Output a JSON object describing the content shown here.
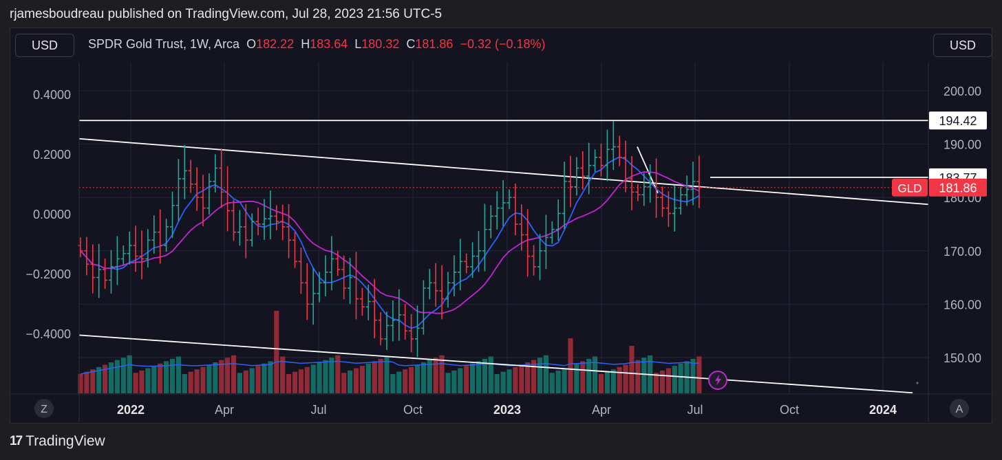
{
  "caption": "rjamesboudreau published on TradingView.com, Jul 28, 2023 21:56 UTC-5",
  "currency_left": "USD",
  "currency_right": "USD",
  "legend": {
    "title": "SPDR Gold Trust, 1W, Arca",
    "o_label": "O",
    "o_value": "182.22",
    "h_label": "H",
    "h_value": "183.64",
    "l_label": "L",
    "l_value": "180.32",
    "c_label": "C",
    "c_value": "181.86",
    "change": "−0.32 (−0.18%)"
  },
  "footer": {
    "brand": "TradingView",
    "logo": "17"
  },
  "corner_left": "Z",
  "corner_right": "A",
  "colors": {
    "up": "#26a69a",
    "down": "#f23645",
    "ma_fast": "#2962ff",
    "ma_slow": "#c026d3",
    "trend": "#ffffff",
    "vol_up": "#136b64",
    "vol_down": "#8f2a36"
  },
  "chart_data": {
    "type": "candlestick",
    "symbol": "GLD",
    "title": "SPDR Gold Trust, 1W, Arca",
    "price_axis": {
      "ticks": [
        150,
        160,
        170,
        180,
        190,
        200
      ],
      "tick_labels": [
        "150.00",
        "160.00",
        "170.00",
        "180.00",
        "190.00",
        "200.00"
      ],
      "range": [
        143.3,
        205.4
      ]
    },
    "osc_axis": {
      "ticks": [
        -0.4,
        -0.2,
        0,
        0.2,
        0.4
      ],
      "tick_labels": [
        "−0.4000",
        "−0.2000",
        "0.0000",
        "0.2000",
        "0.4000"
      ]
    },
    "time_axis": {
      "tick_labels": [
        "2022",
        "Apr",
        "Jul",
        "Oct",
        "2023",
        "Apr",
        "Jul",
        "Oct",
        "2024"
      ],
      "bold": [
        true,
        false,
        false,
        false,
        true,
        false,
        false,
        false,
        true
      ]
    },
    "last_price": {
      "label": "GLD",
      "value": "181.86",
      "price": 181.86
    },
    "horizontal_levels": [
      {
        "price": 194.42,
        "label": "194.42"
      },
      {
        "price": 183.77,
        "label": "183.77"
      }
    ],
    "closes": [
      170,
      167.5,
      165,
      166.5,
      164.5,
      167,
      168.5,
      169.5,
      171,
      169,
      168.5,
      172,
      173.5,
      171,
      174.5,
      178.5,
      183.5,
      185,
      182.5,
      180,
      178,
      183,
      185.5,
      181,
      177.5,
      173.5,
      174.5,
      172,
      175.5,
      175,
      176,
      176.5,
      175.5,
      174.5,
      172,
      168,
      164,
      160,
      162,
      164,
      166,
      168.5,
      166.5,
      163,
      165,
      161,
      159.5,
      160.5,
      157,
      153.5,
      156,
      157,
      158,
      155,
      153.5,
      155.5,
      163,
      164,
      162.5,
      161,
      164,
      166,
      168,
      167,
      169,
      170,
      174,
      176.5,
      178,
      179,
      180,
      175,
      173,
      169,
      167,
      170,
      172.5,
      174,
      177,
      183,
      182,
      185.5,
      184,
      186,
      187.5,
      186,
      189,
      189.5,
      187.5,
      183.5,
      181,
      180.5,
      182,
      182.5,
      180,
      178,
      177,
      178,
      180.5,
      181.5,
      183,
      181.86
    ]
  }
}
